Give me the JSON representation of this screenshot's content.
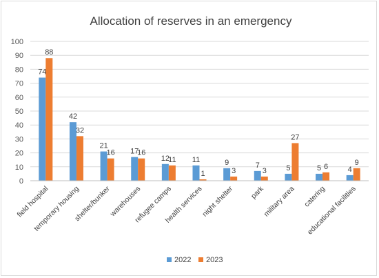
{
  "chart_data": {
    "type": "bar",
    "title": "Allocation of reserves in an emergency",
    "xlabel": "",
    "ylabel": "",
    "ylim": [
      0,
      100
    ],
    "yticks": [
      0,
      10,
      20,
      30,
      40,
      50,
      60,
      70,
      80,
      90,
      100
    ],
    "grid": true,
    "legend_position": "bottom",
    "categories": [
      "field hospital",
      "temporary housing",
      "shelter/bunker",
      "warehouses",
      "refugee camps",
      "health services",
      "night shelter",
      "park",
      "military area",
      "catering",
      "educational facilities"
    ],
    "series": [
      {
        "name": "2022",
        "color": "#5b9bd5",
        "values": [
          74,
          42,
          21,
          17,
          12,
          11,
          9,
          7,
          5,
          5,
          4
        ]
      },
      {
        "name": "2023",
        "color": "#ed7d31",
        "values": [
          88,
          32,
          16,
          16,
          11,
          1,
          3,
          3,
          27,
          6,
          9
        ]
      }
    ]
  }
}
